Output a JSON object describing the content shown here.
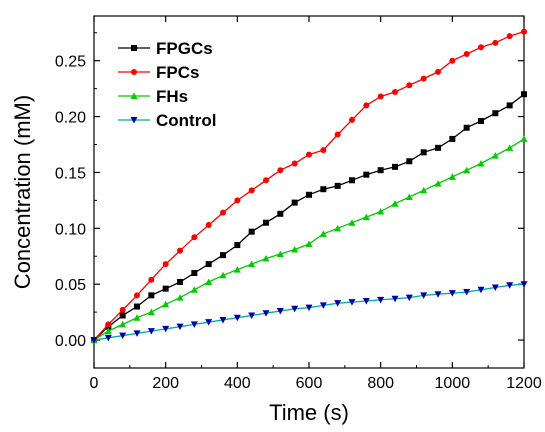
{
  "chart_data": {
    "type": "line",
    "title": "",
    "xlabel": "Time (s)",
    "ylabel": "Concentration (mM)",
    "xlim": [
      0,
      1200
    ],
    "ylim": [
      -0.025,
      0.29
    ],
    "xticks": [
      0,
      200,
      400,
      600,
      800,
      1000,
      1200
    ],
    "xtick_labels": [
      "0",
      "200",
      "400",
      "600",
      "800",
      "1000",
      "1200"
    ],
    "yticks": [
      0.0,
      0.05,
      0.1,
      0.15,
      0.2,
      0.25
    ],
    "ytick_labels": [
      "0.00",
      "0.05",
      "0.10",
      "0.15",
      "0.20",
      "0.25"
    ],
    "grid": false,
    "legend_position": "top-left",
    "x": [
      0,
      40,
      80,
      120,
      160,
      200,
      240,
      280,
      320,
      360,
      400,
      440,
      480,
      520,
      560,
      600,
      640,
      680,
      720,
      760,
      800,
      840,
      880,
      920,
      960,
      1000,
      1040,
      1080,
      1120,
      1160,
      1200
    ],
    "series": [
      {
        "name": "FPGCs",
        "color": "#000000",
        "marker": "square",
        "values": [
          0.0,
          0.012,
          0.022,
          0.03,
          0.04,
          0.046,
          0.052,
          0.06,
          0.068,
          0.076,
          0.085,
          0.097,
          0.105,
          0.113,
          0.123,
          0.13,
          0.135,
          0.138,
          0.143,
          0.148,
          0.152,
          0.155,
          0.16,
          0.168,
          0.172,
          0.18,
          0.19,
          0.196,
          0.203,
          0.21,
          0.22
        ]
      },
      {
        "name": "FPCs",
        "color": "#ff0000",
        "marker": "circle",
        "values": [
          0.0,
          0.014,
          0.027,
          0.04,
          0.054,
          0.068,
          0.08,
          0.092,
          0.103,
          0.114,
          0.125,
          0.134,
          0.143,
          0.152,
          0.158,
          0.166,
          0.17,
          0.184,
          0.197,
          0.21,
          0.218,
          0.222,
          0.228,
          0.234,
          0.24,
          0.25,
          0.256,
          0.262,
          0.266,
          0.272,
          0.276
        ]
      },
      {
        "name": "FHs",
        "color": "#00cc00",
        "marker": "triangle-up",
        "values": [
          0.0,
          0.008,
          0.014,
          0.02,
          0.025,
          0.032,
          0.038,
          0.045,
          0.052,
          0.058,
          0.063,
          0.068,
          0.073,
          0.077,
          0.081,
          0.086,
          0.095,
          0.1,
          0.105,
          0.11,
          0.115,
          0.122,
          0.128,
          0.134,
          0.14,
          0.146,
          0.152,
          0.158,
          0.165,
          0.172,
          0.18
        ]
      },
      {
        "name": "Control",
        "color": "#0000aa",
        "marker": "triangle-down",
        "line_color": "#00aaaa",
        "values": [
          0.0,
          0.002,
          0.004,
          0.006,
          0.008,
          0.01,
          0.012,
          0.014,
          0.016,
          0.018,
          0.02,
          0.022,
          0.024,
          0.026,
          0.028,
          0.029,
          0.031,
          0.033,
          0.034,
          0.035,
          0.036,
          0.037,
          0.038,
          0.04,
          0.041,
          0.042,
          0.043,
          0.045,
          0.047,
          0.049,
          0.05
        ]
      }
    ]
  }
}
